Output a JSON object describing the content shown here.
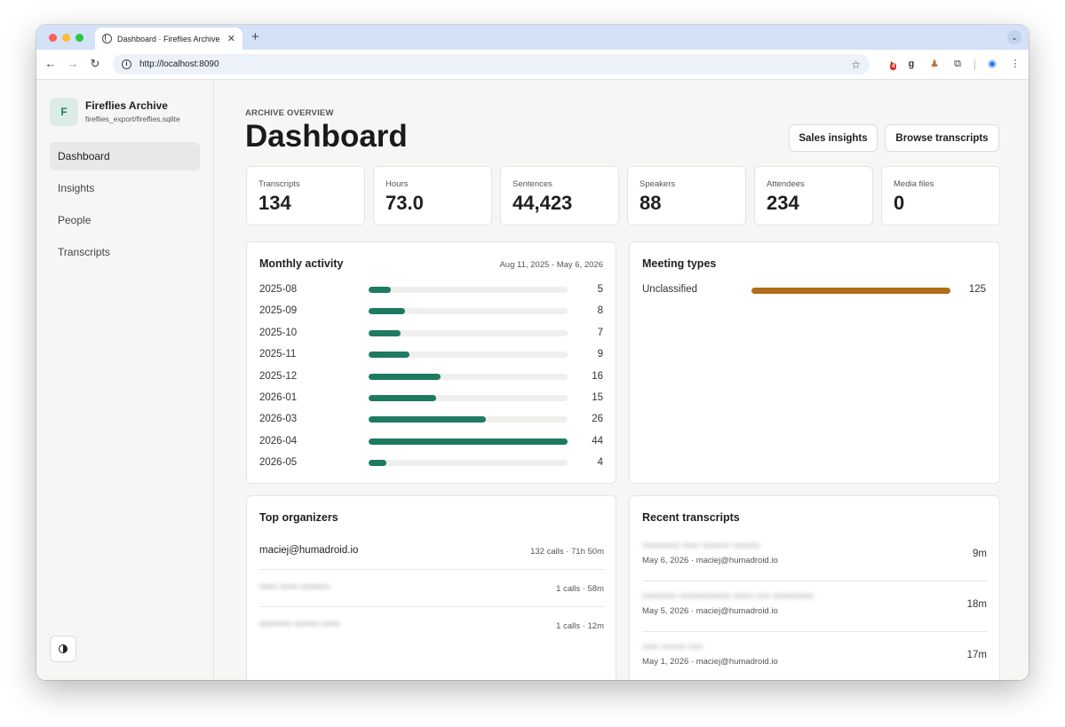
{
  "browser": {
    "tab_title": "Dashboard · Fireflies Archive",
    "url": "http://localhost:8090",
    "extension_badge": "4"
  },
  "brand": {
    "logo_letter": "F",
    "name": "Fireflies Archive",
    "path": "fireflies_export/fireflies.sqlite"
  },
  "nav": [
    {
      "label": "Dashboard",
      "active": true
    },
    {
      "label": "Insights",
      "active": false
    },
    {
      "label": "People",
      "active": false
    },
    {
      "label": "Transcripts",
      "active": false
    }
  ],
  "header": {
    "eyebrow": "ARCHIVE OVERVIEW",
    "title": "Dashboard",
    "sales_button": "Sales insights",
    "browse_button": "Browse transcripts"
  },
  "stats": [
    {
      "label": "Transcripts",
      "value": "134"
    },
    {
      "label": "Hours",
      "value": "73.0"
    },
    {
      "label": "Sentences",
      "value": "44,423"
    },
    {
      "label": "Speakers",
      "value": "88"
    },
    {
      "label": "Attendees",
      "value": "234"
    },
    {
      "label": "Media files",
      "value": "0"
    }
  ],
  "monthly_activity": {
    "title": "Monthly activity",
    "range": "Aug 11, 2025 - May 6, 2026",
    "months": [
      "2025-08",
      "2025-09",
      "2025-10",
      "2025-11",
      "2025-12",
      "2026-01",
      "2026-03",
      "2026-04",
      "2026-05"
    ],
    "counts": [
      5,
      8,
      7,
      9,
      16,
      15,
      26,
      44,
      4
    ],
    "color": "#1f7a62"
  },
  "meeting_types": {
    "title": "Meeting types",
    "items": [
      {
        "label": "Unclassified",
        "count": 125
      }
    ],
    "color": "#b06c1a"
  },
  "top_organizers": {
    "title": "Top organizers",
    "rows": [
      {
        "name": "maciej@humadroid.io",
        "meta": "132 calls · 71h 50m",
        "blurred": false
      },
      {
        "name": "",
        "meta": "1 calls · 58m",
        "blurred": true
      },
      {
        "name": "",
        "meta": "1 calls · 12m",
        "blurred": true
      }
    ]
  },
  "recent_transcripts": {
    "title": "Recent transcripts",
    "rows": [
      {
        "meta": "May 6, 2026 · maciej@humadroid.io",
        "duration": "9m"
      },
      {
        "meta": "May 5, 2026 · maciej@humadroid.io",
        "duration": "18m"
      },
      {
        "meta": "May 1, 2026 · maciej@humadroid.io",
        "duration": "17m"
      }
    ]
  }
}
